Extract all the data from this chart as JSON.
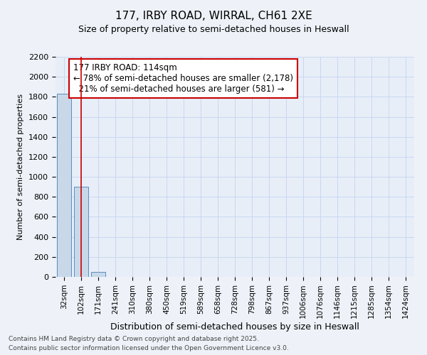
{
  "title1": "177, IRBY ROAD, WIRRAL, CH61 2XE",
  "title2": "Size of property relative to semi-detached houses in Heswall",
  "xlabel": "Distribution of semi-detached houses by size in Heswall",
  "ylabel": "Number of semi-detached properties",
  "categories": [
    "32sqm",
    "102sqm",
    "171sqm",
    "241sqm",
    "310sqm",
    "380sqm",
    "450sqm",
    "519sqm",
    "589sqm",
    "658sqm",
    "728sqm",
    "798sqm",
    "867sqm",
    "937sqm",
    "1006sqm",
    "1076sqm",
    "1146sqm",
    "1215sqm",
    "1285sqm",
    "1354sqm",
    "1424sqm"
  ],
  "values": [
    1830,
    900,
    50,
    0,
    0,
    0,
    0,
    0,
    0,
    0,
    0,
    0,
    0,
    0,
    0,
    0,
    0,
    0,
    0,
    0,
    0
  ],
  "bar_color": "#c8d8e8",
  "bar_edge_color": "#5a8fc0",
  "property_bar_index": 1,
  "property_line_color": "#cc0000",
  "ylim": [
    0,
    2200
  ],
  "yticks": [
    0,
    200,
    400,
    600,
    800,
    1000,
    1200,
    1400,
    1600,
    1800,
    2000,
    2200
  ],
  "annotation_text": "177 IRBY ROAD: 114sqm\n← 78% of semi-detached houses are smaller (2,178)\n  21% of semi-detached houses are larger (581) →",
  "annotation_box_color": "#ffffff",
  "annotation_edge_color": "#cc0000",
  "footer_line1": "Contains HM Land Registry data © Crown copyright and database right 2025.",
  "footer_line2": "Contains public sector information licensed under the Open Government Licence v3.0.",
  "bg_color": "#eef2f8",
  "plot_bg_color": "#e8eef8",
  "grid_color": "#c8d8f0"
}
